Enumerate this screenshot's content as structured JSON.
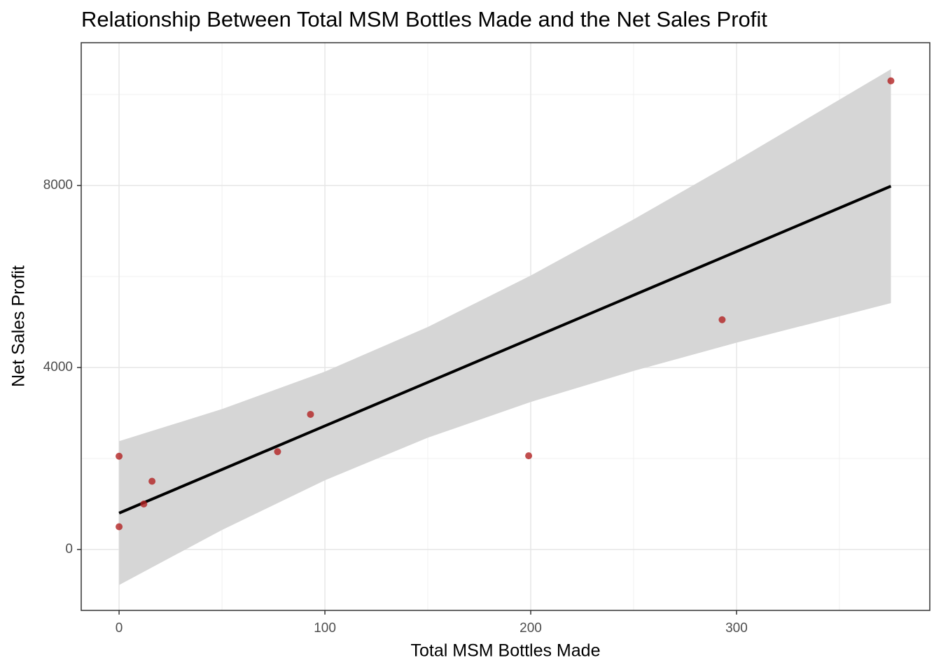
{
  "chart_data": {
    "type": "scatter",
    "title": "Relationship Between Total MSM Bottles Made and the Net Sales Profit",
    "x_label": "Total MSM Bottles Made",
    "y_label": "Net Sales Profit",
    "series": [
      {
        "color": "#b22222",
        "x": [
          0,
          0,
          12,
          16,
          77,
          93,
          199,
          293,
          375
        ],
        "values": [
          2050,
          500,
          1000,
          1500,
          2150,
          2970,
          2060,
          5050,
          10300
        ]
      }
    ],
    "fit": {
      "color": "#000000",
      "band_color": "#d6d6d6",
      "x": [
        0,
        50,
        100,
        150,
        200,
        250,
        300,
        375
      ],
      "values": [
        800,
        1758,
        2716,
        3674,
        4632,
        5590,
        6548,
        7985
      ],
      "lower": [
        -780,
        430,
        1522,
        2457,
        3243,
        3925,
        4546,
        5415
      ],
      "upper": [
        2380,
        3086,
        3910,
        4891,
        6021,
        7255,
        8550,
        10555
      ]
    },
    "xlim": [
      -18.4,
      393.9
    ],
    "ylim": [
      -1338,
      11138
    ],
    "xticks": [
      0,
      100,
      200,
      300
    ],
    "yticks": [
      0,
      4000,
      8000
    ],
    "x_minor_grid": [
      50,
      150,
      250,
      350
    ],
    "y_minor_grid": [
      2000,
      6000,
      10000
    ],
    "grid": true
  }
}
